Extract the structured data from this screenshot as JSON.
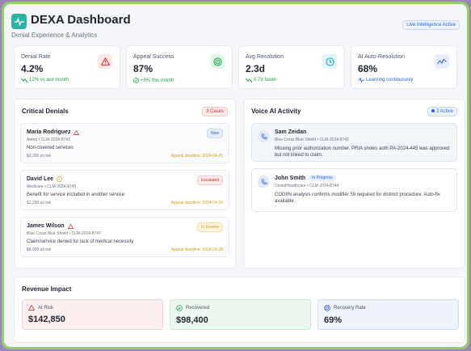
{
  "header": {
    "title": "DEXA Dashboard",
    "subtitle": "Denial Experience & Analytics",
    "live_badge": "Live Intelligence Active"
  },
  "kpis": [
    {
      "label": "Denial Rate",
      "value": "4.2%",
      "sub": "12% vs last month",
      "icon": "alert-triangle-icon",
      "color": "#dc2626"
    },
    {
      "label": "Appeal Success",
      "value": "87%",
      "sub": "+5% this month",
      "icon": "target-icon",
      "color": "#16a34a"
    },
    {
      "label": "Avg Resolution",
      "value": "2.3d",
      "sub": "0.7d faster",
      "icon": "clock-icon",
      "color": "#0ea5c6"
    },
    {
      "label": "AI Auto-Resolution",
      "value": "68%",
      "sub": "Learning continuously",
      "icon": "activity-icon",
      "color": "#2563eb"
    }
  ],
  "critical": {
    "title": "Critical Denials",
    "badge": "3 Cases",
    "items": [
      {
        "name": "Maria Rodriguez",
        "meta": "Aetna • CLM-2024-8743",
        "reason": "Non-covered services",
        "amount": "$3,200 at risk",
        "deadline": "Appeal deadline: 2024-04-25",
        "status": "New"
      },
      {
        "name": "David Lee",
        "meta": "Medicare • CLM-2024-8745",
        "reason": "Benefit for service included in another service",
        "amount": "$1,200 at risk",
        "deadline": "Appeal deadline: 2024-04-15",
        "status": "Escalated"
      },
      {
        "name": "James Wilson",
        "meta": "Blue Cross Blue Shield • CLM-2024-8747",
        "reason": "Claim/service denied for lack of medical necessity",
        "amount": "$8,900 at risk",
        "deadline": "Appeal deadline: 2024-04-28",
        "status": "In Review"
      }
    ]
  },
  "voice": {
    "title": "Voice AI Activity",
    "badge": "2 Active",
    "items": [
      {
        "name": "Sam Zeidan",
        "status": "",
        "meta": "Blue Cross Blue Shield • CLM-2024-8742",
        "message": "Missing prior authorization number. PRIA shows auth PA-2024-445 was approved but not linked to claim."
      },
      {
        "name": "John Smith",
        "status": "In Progress",
        "meta": "UnitedHealthcare • CLM-2024-8744",
        "message": "CODIIN analysis confirms modifier 59 required for distinct procedure. Auto-fix available."
      }
    ]
  },
  "revenue": {
    "title": "Revenue Impact",
    "at_risk_label": "At Risk",
    "at_risk_value": "$142,850",
    "recovered_label": "Recovered",
    "recovered_value": "$98,400",
    "rate_label": "Recovery Rate",
    "rate_value": "69%"
  }
}
